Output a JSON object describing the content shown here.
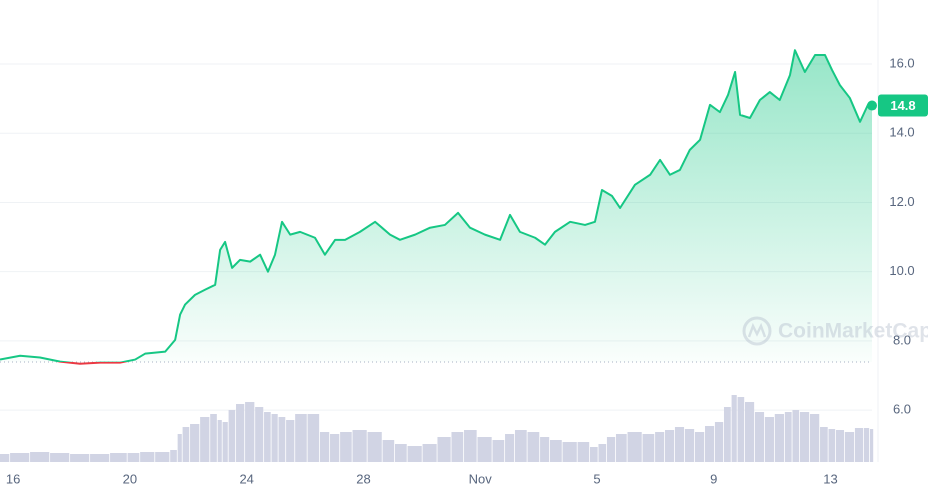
{
  "chart_data": {
    "type": "line",
    "watermark": "CoinMarketCap",
    "x": [
      -0.45,
      0.24,
      0.92,
      1.61,
      2.29,
      2.98,
      3.66,
      4.18,
      4.52,
      5.21,
      5.55,
      5.72,
      5.89,
      6.23,
      6.58,
      6.92,
      7.09,
      7.26,
      7.5,
      7.77,
      8.12,
      8.46,
      8.73,
      8.97,
      9.21,
      9.49,
      9.83,
      10.34,
      10.68,
      11.03,
      11.37,
      11.88,
      12.4,
      12.91,
      13.25,
      13.77,
      14.28,
      14.79,
      15.24,
      15.65,
      16.16,
      16.68,
      17.02,
      17.36,
      17.88,
      18.22,
      18.56,
      19.08,
      19.59,
      19.93,
      20.17,
      20.51,
      20.79,
      21.3,
      21.82,
      22.16,
      22.5,
      22.84,
      23.18,
      23.53,
      23.87,
      24.21,
      24.49,
      24.73,
      24.9,
      25.24,
      25.58,
      25.92,
      26.26,
      26.61,
      26.78,
      27.12,
      27.47,
      27.81,
      28.05,
      28.32,
      28.66,
      29.01,
      29.28,
      29.42
    ],
    "series": [
      {
        "color": "#16c784",
        "below_color": "#ea3943",
        "values": [
          7.46,
          7.57,
          7.52,
          7.4,
          7.34,
          7.37,
          7.37,
          7.46,
          7.63,
          7.69,
          8.03,
          8.76,
          9.05,
          9.33,
          9.48,
          9.62,
          10.63,
          10.86,
          10.11,
          10.34,
          10.29,
          10.49,
          10.0,
          10.49,
          11.44,
          11.07,
          11.15,
          10.98,
          10.49,
          10.92,
          10.92,
          11.15,
          11.44,
          11.07,
          10.92,
          11.07,
          11.27,
          11.35,
          11.7,
          11.27,
          11.07,
          10.92,
          11.64,
          11.15,
          10.98,
          10.78,
          11.15,
          11.44,
          11.35,
          11.44,
          12.36,
          12.19,
          11.84,
          12.51,
          12.8,
          13.23,
          12.8,
          12.94,
          13.52,
          13.81,
          14.82,
          14.61,
          15.11,
          15.77,
          14.53,
          14.44,
          14.96,
          15.19,
          14.96,
          15.68,
          16.4,
          15.77,
          16.26,
          16.26,
          15.83,
          15.39,
          15.02,
          14.33,
          14.82,
          14.8
        ]
      }
    ],
    "baseline": 7.39,
    "volume": {
      "color": "#d1d4e4",
      "vlim": [
        0,
        100
      ],
      "values": [
        8,
        9,
        10,
        9,
        8,
        8,
        9,
        9,
        10,
        10,
        12,
        28,
        35,
        38,
        45,
        48,
        42,
        40,
        52,
        58,
        60,
        55,
        50,
        48,
        45,
        42,
        48,
        48,
        30,
        28,
        30,
        32,
        30,
        22,
        18,
        16,
        18,
        25,
        30,
        32,
        25,
        22,
        28,
        32,
        30,
        25,
        22,
        20,
        20,
        15,
        18,
        25,
        28,
        30,
        28,
        30,
        32,
        35,
        33,
        30,
        36,
        40,
        55,
        67,
        65,
        60,
        50,
        45,
        48,
        50,
        52,
        50,
        48,
        35,
        33,
        32,
        30,
        34,
        34,
        33
      ]
    },
    "xlim": [
      -0.45,
      29.42
    ],
    "xticks": [
      {
        "value": 0,
        "label": "16"
      },
      {
        "value": 4,
        "label": "20"
      },
      {
        "value": 8,
        "label": "24"
      },
      {
        "value": 12,
        "label": "28"
      },
      {
        "value": 16,
        "label": "Nov"
      },
      {
        "value": 20,
        "label": "5"
      },
      {
        "value": 24,
        "label": "9"
      },
      {
        "value": 28,
        "label": "13"
      }
    ],
    "ylim": [
      4.5,
      17.85
    ],
    "yticks": [
      {
        "value": 6,
        "label": "6.0"
      },
      {
        "value": 8,
        "label": "8.0"
      },
      {
        "value": 10,
        "label": "10.0"
      },
      {
        "value": 12,
        "label": "12.0"
      },
      {
        "value": 14,
        "label": "14.0"
      },
      {
        "value": 16,
        "label": "16.0"
      }
    ],
    "grid": true
  }
}
